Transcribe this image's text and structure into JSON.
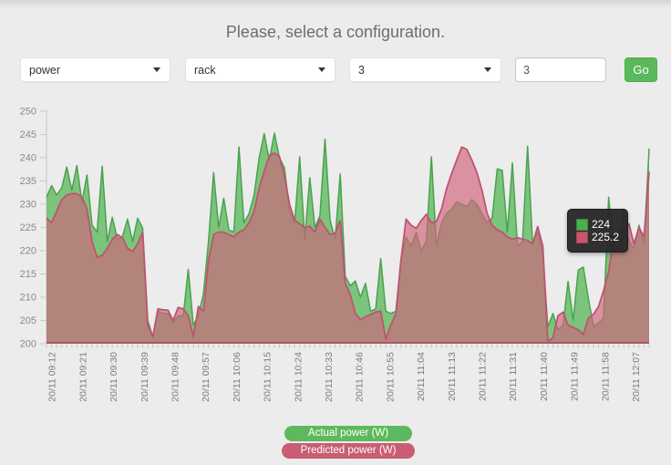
{
  "header": {
    "title": "Please, select a configuration."
  },
  "form": {
    "metric_select": {
      "value": "power"
    },
    "level_select": {
      "value": "rack"
    },
    "id_select": {
      "value": "3"
    },
    "count_input": {
      "value": "3"
    },
    "go_button": {
      "label": "Go"
    }
  },
  "tooltip": {
    "actual_value": "224",
    "predicted_value": "225.2"
  },
  "legend": {
    "actual_label": "Actual power (W)",
    "predicted_label": "Predicted power (W)"
  },
  "colors": {
    "actual_green": "#5cb85c",
    "actual_green_stroke": "#4aa24e",
    "predicted_pink": "#d0627d",
    "predicted_pink_stroke": "#bf5370",
    "baseline": "#ab5864",
    "axis": "#c9c9c9",
    "tick_label": "#8a8a8a"
  },
  "chart_data": {
    "type": "area",
    "title": "",
    "xlabel": "",
    "ylabel": "",
    "ylim": [
      200,
      250
    ],
    "y_ticks": [
      200,
      205,
      210,
      215,
      220,
      225,
      230,
      235,
      240,
      245,
      250
    ],
    "grid": false,
    "legend_position": "bottom",
    "x_labels": [
      "20/11 09:12",
      "20/11 09:21",
      "20/11 09:30",
      "20/11 09:39",
      "20/11 09:48",
      "20/11 09:57",
      "20/11 10:06",
      "20/11 10:15",
      "20/11 10:24",
      "20/11 10:33",
      "20/11 10:46",
      "20/11 10:55",
      "20/11 11:04",
      "20/11 11:13",
      "20/11 11:22",
      "20/11 11:31",
      "20/11 11:40",
      "20/11 11:49",
      "20/11 11:58",
      "20/11 12:07"
    ],
    "series": [
      {
        "name": "Actual power (W)",
        "color": "#5cb85c",
        "values": [
          231.5,
          234,
          232,
          233.5,
          238,
          233,
          238.3,
          230.5,
          236.3,
          225.5,
          224,
          238.2,
          222,
          227.2,
          222.5,
          223,
          226.8,
          222,
          227,
          224.8,
          205,
          201.5,
          207,
          206.5,
          206.5,
          204.5,
          206,
          206,
          216,
          204,
          206,
          210.8,
          222,
          236.8,
          225,
          231.3,
          224.5,
          224,
          242.3,
          226,
          228,
          232,
          240,
          245.2,
          239.5,
          245.3,
          240,
          237.8,
          228.5,
          226,
          240.2,
          222.5,
          235.7,
          225,
          227.5,
          244,
          226.5,
          222.5,
          236.5,
          214.5,
          212.5,
          213.5,
          210,
          213,
          207,
          207.5,
          218.3,
          207,
          206.5,
          207,
          218,
          222.9,
          221,
          224,
          220,
          222,
          240.2,
          221,
          226,
          228,
          229,
          230.5,
          230,
          229.5,
          231,
          230,
          228,
          226,
          227,
          237.6,
          237.3,
          224,
          238.9,
          221,
          222,
          242.5,
          221.5,
          224,
          219.5,
          203.6,
          206.5,
          203,
          204,
          213.4,
          205,
          215.8,
          216.5,
          209.8,
          203.8,
          204.5,
          205.5,
          231.5,
          221.5,
          222,
          228.8,
          222,
          220.5,
          225.5,
          221.5,
          242
        ]
      },
      {
        "name": "Predicted power (W)",
        "color": "#d0627d",
        "values": [
          227,
          226,
          228.5,
          231,
          232,
          232.3,
          232.3,
          231.5,
          229,
          222,
          218.6,
          219,
          220.5,
          222.5,
          223.5,
          222.8,
          220.5,
          219.8,
          221.5,
          224,
          204,
          201.5,
          207.5,
          207.3,
          207.2,
          205,
          207.8,
          207.5,
          206,
          201.5,
          208,
          207,
          218,
          223.5,
          224,
          224,
          223.5,
          223,
          224,
          224.5,
          226,
          228.5,
          233.5,
          237,
          240.5,
          241,
          240.3,
          236,
          230,
          226.5,
          225.8,
          225,
          225.3,
          224,
          226.8,
          225,
          223.5,
          223.8,
          226.5,
          213,
          210.5,
          206.5,
          205.2,
          205.8,
          206.3,
          206.8,
          207,
          201,
          204,
          206.5,
          218,
          226.8,
          225.5,
          224.8,
          226.5,
          227.8,
          226,
          226.3,
          229,
          233.3,
          236.6,
          239.5,
          242.3,
          241.8,
          239.5,
          236.8,
          233,
          228,
          225.5,
          224.5,
          224,
          223,
          222.5,
          222.8,
          222.5,
          222.2,
          221.5,
          225.2,
          221,
          200.5,
          201.3,
          206,
          206.8,
          204,
          203.5,
          203,
          202,
          205.5,
          206.3,
          208,
          211.4,
          215.5,
          222.5,
          224.5,
          224.8,
          225.8,
          221.5,
          225,
          223,
          237
        ]
      }
    ]
  }
}
